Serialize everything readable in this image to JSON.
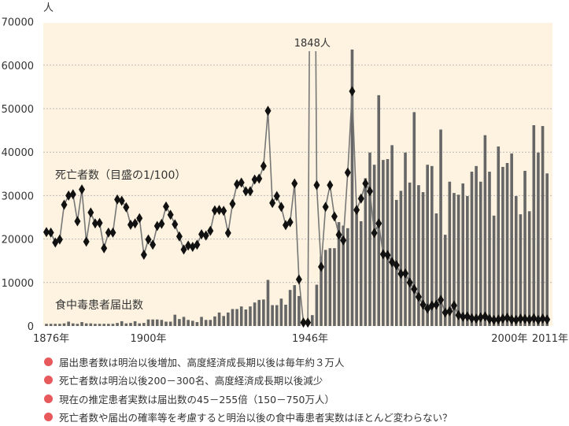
{
  "chart_data": {
    "type": "bar+line",
    "y_unit": "人",
    "ylim": [
      0,
      70000
    ],
    "yticks": [
      "0",
      "10000",
      "20000",
      "30000",
      "40000",
      "50000",
      "60000",
      "70000"
    ],
    "grid": true,
    "x_tick_labels": [
      {
        "label": "1876年",
        "index": 0
      },
      {
        "label": "1900年",
        "index": 23
      },
      {
        "label": "1946年",
        "index": 59.5
      },
      {
        "label": "2000年",
        "index": 104.5
      },
      {
        "label": "2011年",
        "index": 113
      }
    ],
    "series": [
      {
        "name": "食中毒患者届出数",
        "kind": "bar",
        "color": "#666666",
        "values": [
          500,
          500,
          500,
          500,
          600,
          1000,
          600,
          500,
          900,
          600,
          600,
          500,
          500,
          500,
          500,
          500,
          700,
          1100,
          600,
          700,
          1100,
          600,
          700,
          1500,
          1500,
          1500,
          1400,
          1000,
          1000,
          2600,
          1600,
          2100,
          1400,
          1200,
          900,
          2100,
          1400,
          1400,
          2200,
          3100,
          2300,
          3100,
          3900,
          3900,
          4500,
          3800,
          4500,
          5400,
          6000,
          6100,
          10600,
          4800,
          4800,
          6300,
          4900,
          8300,
          9400,
          6900,
          0,
          0,
          2500,
          9500,
          16000,
          17500,
          17900,
          17900,
          23900,
          23100,
          22500,
          63600,
          26000,
          24100,
          34000,
          39900,
          37100,
          53100,
          38200,
          38400,
          41600,
          29000,
          31100,
          39900,
          33000,
          49200,
          32400,
          30800,
          37100,
          36800,
          25900,
          45200,
          21000,
          33200,
          30600,
          30200,
          32800,
          29900,
          35500,
          36800,
          33200,
          43900,
          35500,
          25400,
          41300,
          36600,
          37500,
          39700,
          29900,
          25700,
          35700,
          26400,
          46200,
          39900,
          46000,
          35100
        ]
      },
      {
        "name": "死亡者数（目盛の1/100）",
        "kind": "line-diamond",
        "scale": 100,
        "color": "#777777",
        "marker_color": "#111111",
        "values": [
          216,
          215,
          192,
          199,
          279,
          300,
          303,
          241,
          314,
          194,
          261,
          236,
          237,
          179,
          215,
          215,
          291,
          288,
          273,
          233,
          236,
          248,
          164,
          199,
          187,
          230,
          235,
          275,
          256,
          234,
          206,
          176,
          185,
          182,
          187,
          211,
          208,
          219,
          266,
          267,
          265,
          214,
          281,
          326,
          330,
          310,
          310,
          337,
          339,
          368,
          495,
          283,
          299,
          274,
          232,
          239,
          328,
          107,
          8,
          8,
          1848,
          324,
          136,
          274,
          324,
          252,
          210,
          197,
          353,
          540,
          267,
          293,
          328,
          310,
          214,
          236,
          165,
          163,
          147,
          140,
          120,
          121,
          100,
          85,
          67,
          49,
          40,
          47,
          49,
          60,
          31,
          34,
          47,
          25,
          21,
          22,
          18,
          17,
          20,
          22,
          16,
          14,
          15,
          17,
          19,
          15,
          14,
          17,
          16,
          15,
          18,
          14,
          17,
          15
        ]
      }
    ],
    "annotations": [
      {
        "text": "1848人",
        "index": 60
      }
    ],
    "plot_background": "#fdf3e0"
  },
  "labels": {
    "deaths": "死亡者数（目盛の1/100）",
    "patients": "食中毒患者届出数"
  },
  "notes": {
    "bullet_color": "#e8595c",
    "items": [
      "届出患者数は明治以後増加、高度経済成長期以後は毎年約３万人",
      "死亡者数は明治以後200－300名、高度経済成長期以後減少",
      "現在の推定患者実数は届出数の45－255倍（150－750万人）",
      "死亡者数や届出の確率等を考慮すると明治以後の食中毒患者実数はほとんど変わらない？"
    ]
  }
}
